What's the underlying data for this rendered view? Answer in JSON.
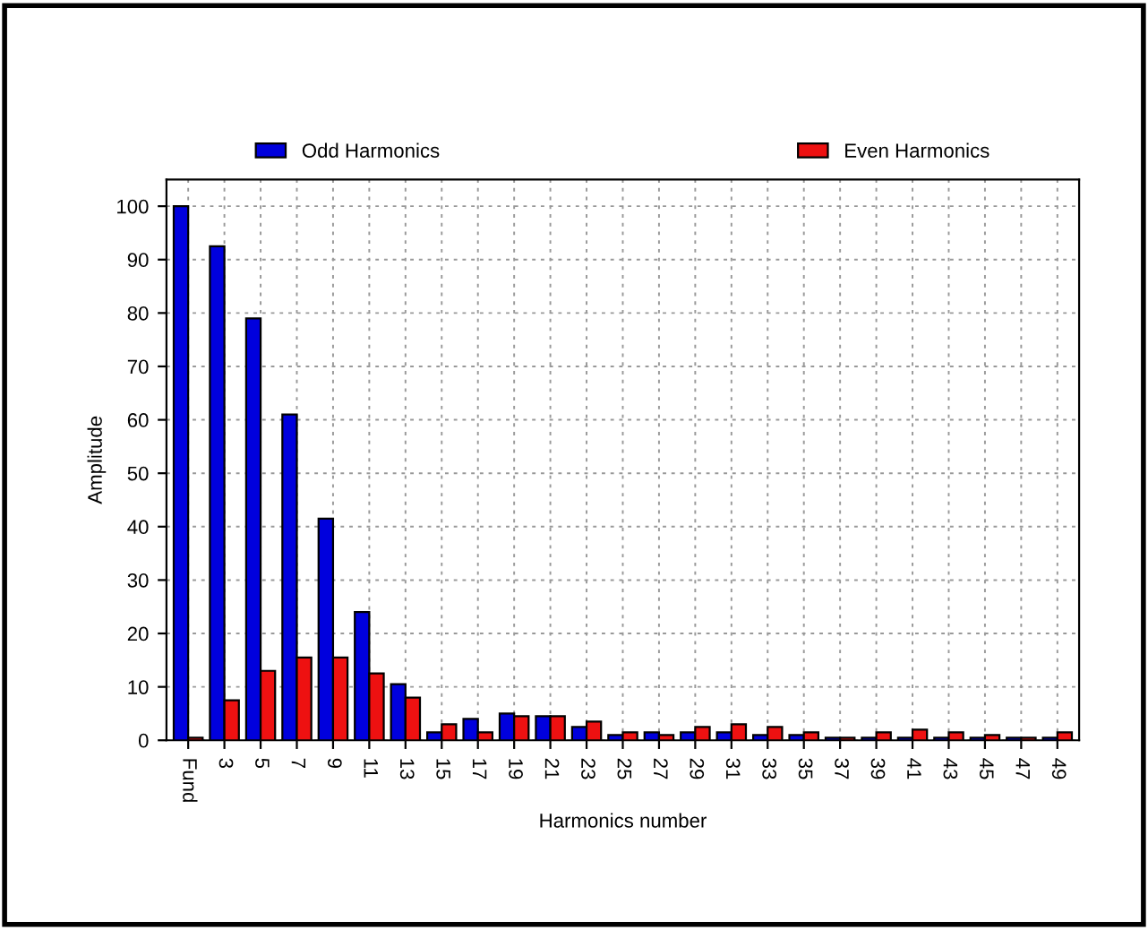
{
  "chart_data": {
    "type": "bar",
    "xlabel": "Harmonics number",
    "ylabel": "Amplitude",
    "categories": [
      "Fund",
      "3",
      "5",
      "7",
      "9",
      "11",
      "13",
      "15",
      "17",
      "19",
      "21",
      "23",
      "25",
      "27",
      "29",
      "31",
      "33",
      "35",
      "37",
      "39",
      "41",
      "43",
      "45",
      "47",
      "49"
    ],
    "series": [
      {
        "name": "Odd Harmonics",
        "color": "#0000dd",
        "values": [
          100,
          92.5,
          79,
          61,
          41.5,
          24,
          10.5,
          1.5,
          4,
          5,
          4.5,
          2.5,
          1,
          1.5,
          1.5,
          1.5,
          1,
          1,
          0.5,
          0.5,
          0.5,
          0.5,
          0.5,
          0.5,
          0.5
        ]
      },
      {
        "name": "Even Harmonics",
        "color": "#ee1111",
        "values": [
          0.5,
          7.5,
          13,
          15.5,
          15.5,
          12.5,
          8,
          3,
          1.5,
          4.5,
          4.5,
          3.5,
          1.5,
          1,
          2.5,
          3,
          2.5,
          1.5,
          0.5,
          1.5,
          2,
          1.5,
          1,
          0.5,
          1.5
        ]
      }
    ],
    "ylim": [
      0,
      105
    ],
    "yticks": [
      0,
      10,
      20,
      30,
      40,
      50,
      60,
      70,
      80,
      90,
      100
    ],
    "grid": true,
    "legend": "top"
  }
}
